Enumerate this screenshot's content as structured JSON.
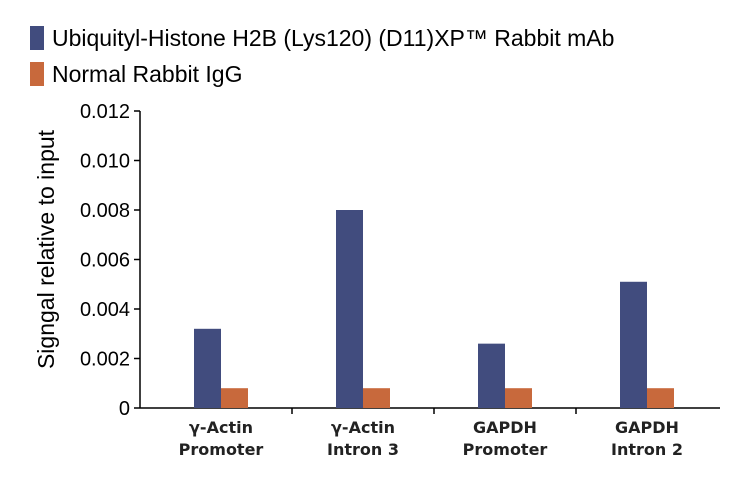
{
  "chart_data": {
    "type": "bar",
    "categories": [
      [
        "γ-Actin",
        "Promoter"
      ],
      [
        "γ-Actin",
        "Intron 3"
      ],
      [
        "GAPDH",
        "Promoter"
      ],
      [
        "GAPDH",
        "Intron 2"
      ]
    ],
    "series": [
      {
        "name": "Ubiquityl-Histone H2B (Lys120) (D11)XP™ Rabbit mAb",
        "color": "#414c7e",
        "values": [
          0.0032,
          0.008,
          0.0026,
          0.0051
        ]
      },
      {
        "name": "Normal Rabbit IgG",
        "color": "#c8693c",
        "values": [
          0.0008,
          0.0008,
          0.0008,
          0.0008
        ]
      }
    ],
    "ylabel": "Signgal relative to input",
    "ylim": [
      0,
      0.012
    ],
    "yticks": [
      "0",
      "0.002",
      "0.004",
      "0.006",
      "0.008",
      "0.010",
      "0.012"
    ],
    "grid": false,
    "legend_position": "top-left"
  }
}
